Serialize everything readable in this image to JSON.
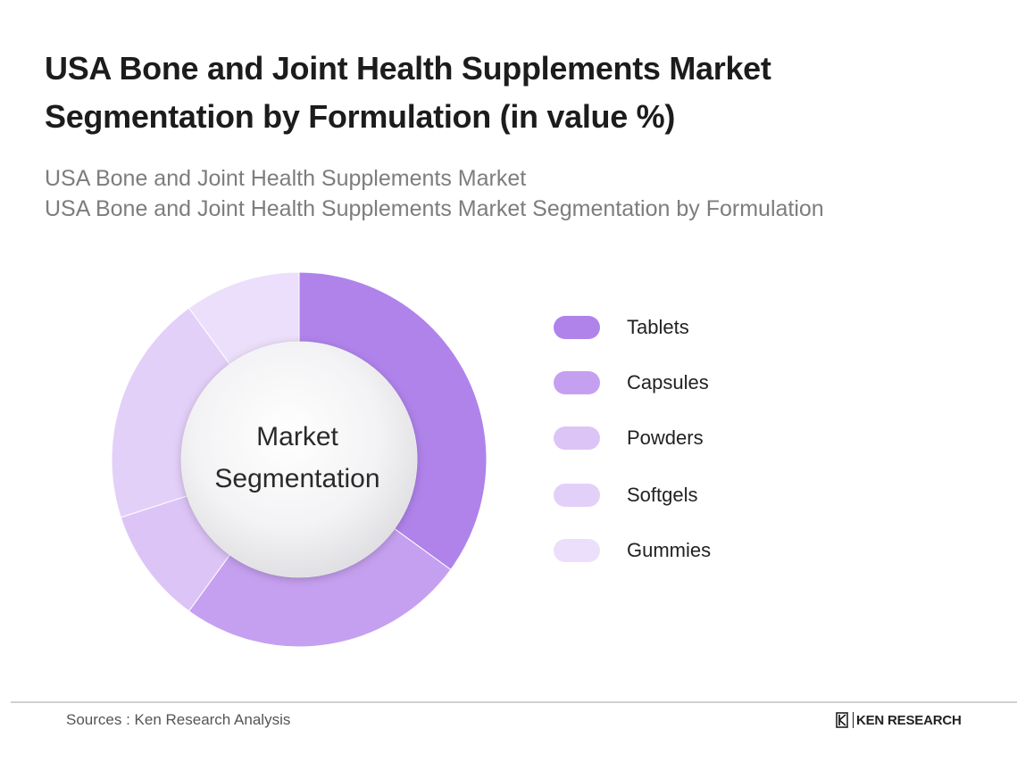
{
  "header": {
    "title_line1": "USA Bone and Joint Health Supplements Market",
    "title_line2": "Segmentation by Formulation (in value %)",
    "subtitle_line1": "USA Bone and Joint Health Supplements Market",
    "subtitle_line2": "USA Bone and Joint Health Supplements Market Segmentation by Formulation"
  },
  "chart_data": {
    "type": "pie",
    "title": "USA Bone and Joint Health Supplements Market Segmentation by Formulation (in value %)",
    "center_label_line1": "Market",
    "center_label_line2": "Segmentation",
    "categories": [
      "Tablets",
      "Capsules",
      "Powders",
      "Softgels",
      "Gummies"
    ],
    "values": [
      35,
      25,
      10,
      20,
      10
    ],
    "colors": [
      "#b083eb",
      "#c6a0f0",
      "#ddc4f7",
      "#e3d0f9",
      "#ecdffb"
    ],
    "legend_position": "right"
  },
  "footer": {
    "source": "Sources : Ken Research Analysis",
    "brand": "KEN RESEARCH"
  }
}
